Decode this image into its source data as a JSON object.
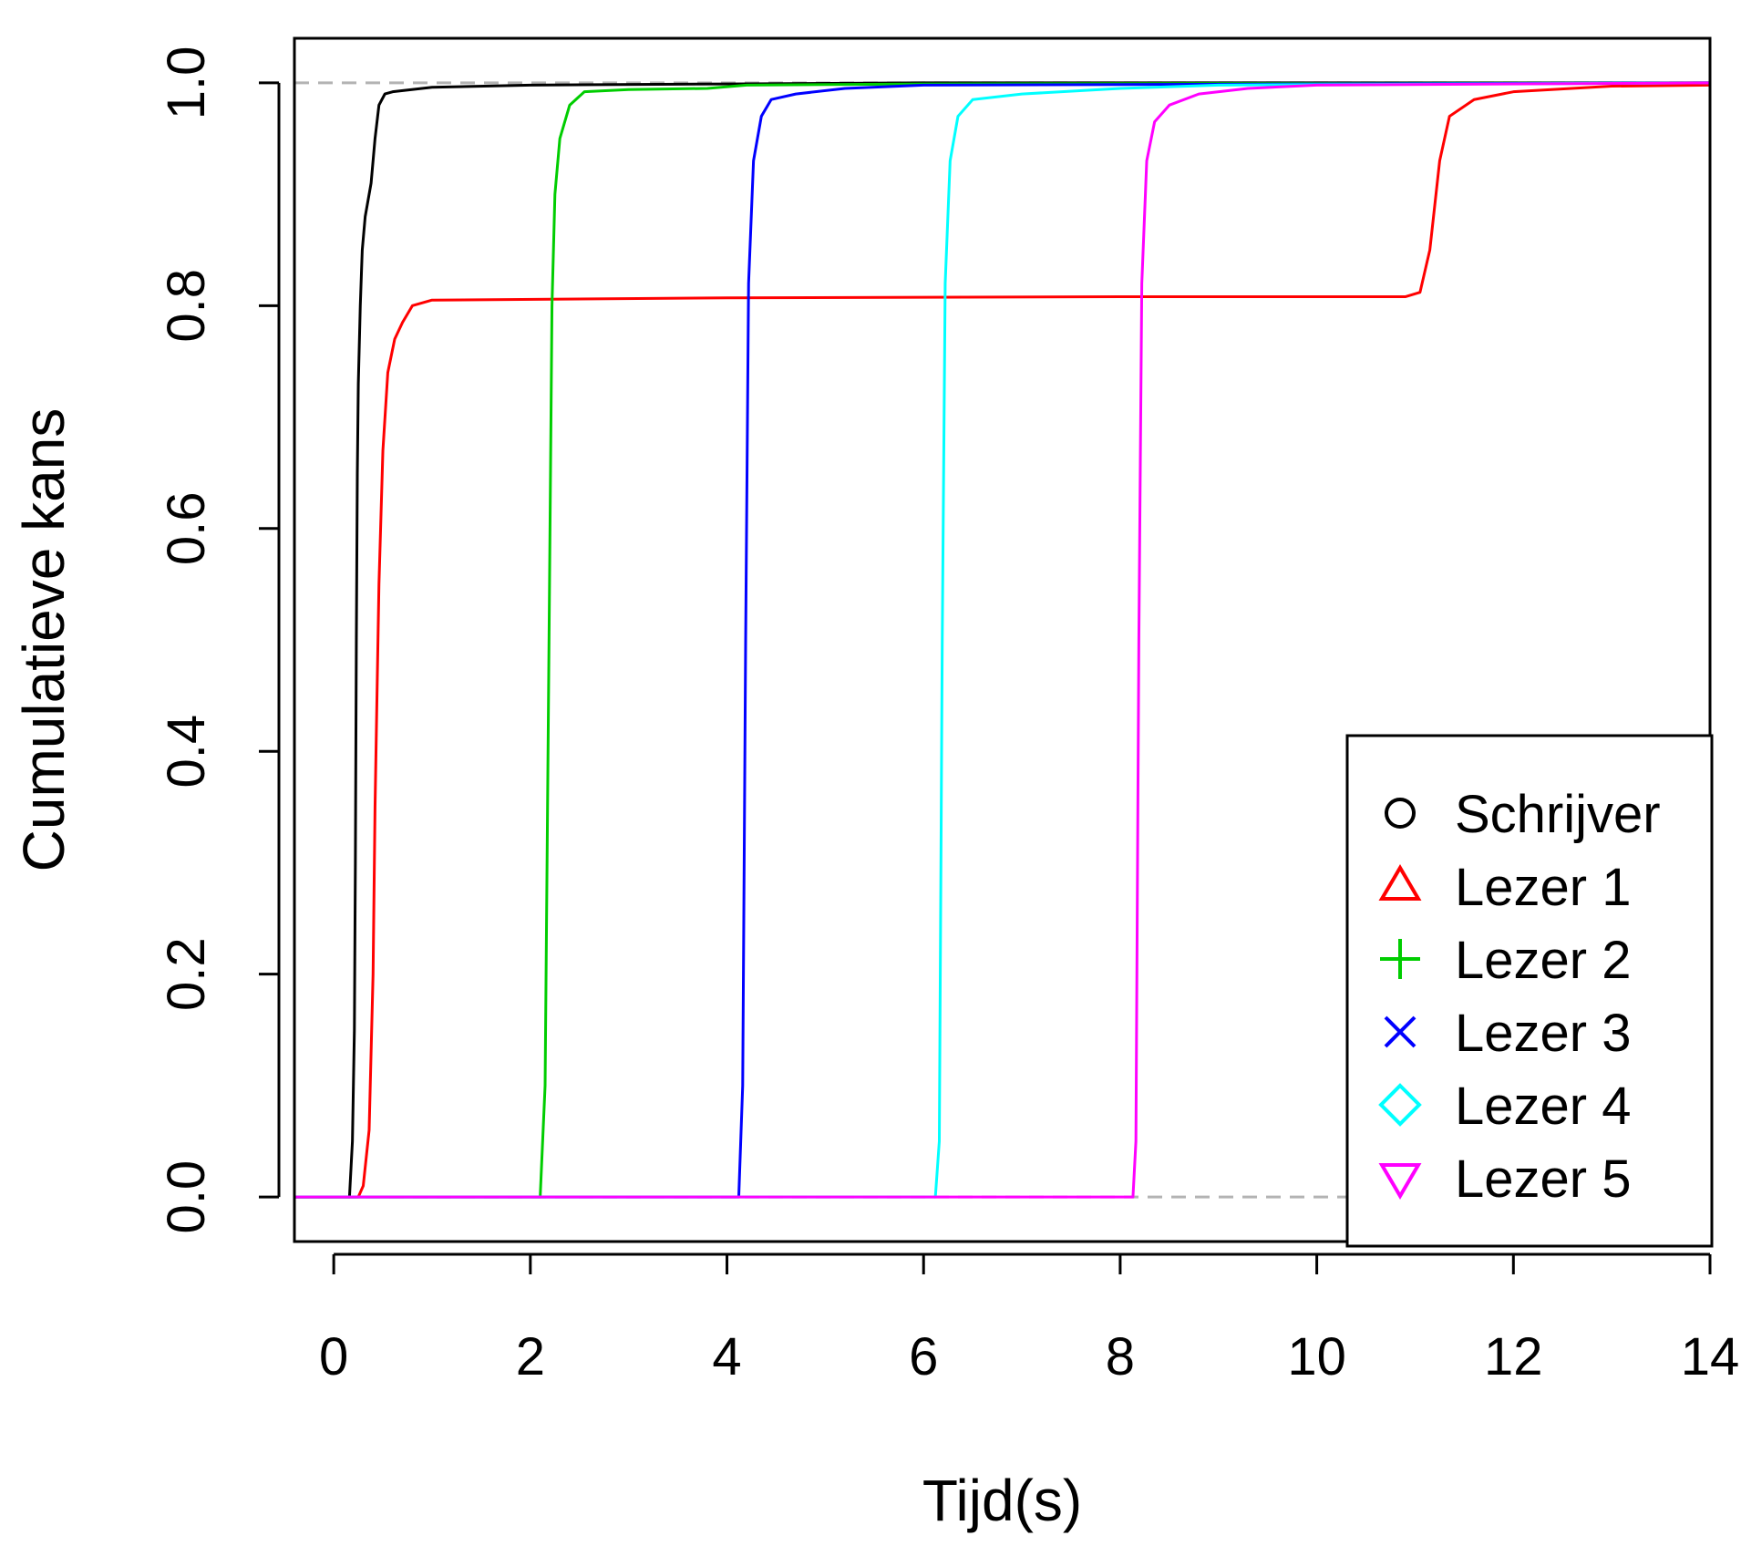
{
  "chart_data": {
    "type": "line",
    "title": "",
    "xlabel": "Tijd(s)",
    "ylabel": "Cumulatieve kans",
    "xlim": [
      -0.4,
      14.0
    ],
    "ylim": [
      -0.04,
      1.04
    ],
    "x_ticks": [
      0,
      2,
      4,
      6,
      8,
      10,
      12,
      14
    ],
    "x_tick_labels": [
      "0",
      "2",
      "4",
      "6",
      "8",
      "10",
      "12",
      "14"
    ],
    "y_ticks": [
      0.0,
      0.2,
      0.4,
      0.6,
      0.8,
      1.0
    ],
    "y_tick_labels": [
      "0.0",
      "0.2",
      "0.4",
      "0.6",
      "0.8",
      "1.0"
    ],
    "reference_lines": [
      0,
      1
    ],
    "grid": false,
    "legend_position": "bottom-right",
    "series": [
      {
        "name": "Schrijver",
        "color": "#000000",
        "marker": "circle",
        "points": [
          [
            0.16,
            0.0
          ],
          [
            0.19,
            0.05
          ],
          [
            0.21,
            0.15
          ],
          [
            0.22,
            0.3
          ],
          [
            0.23,
            0.5
          ],
          [
            0.24,
            0.65
          ],
          [
            0.25,
            0.73
          ],
          [
            0.27,
            0.8
          ],
          [
            0.29,
            0.85
          ],
          [
            0.32,
            0.88
          ],
          [
            0.38,
            0.91
          ],
          [
            0.42,
            0.95
          ],
          [
            0.46,
            0.98
          ],
          [
            0.52,
            0.99
          ],
          [
            0.6,
            0.992
          ],
          [
            1.0,
            0.996
          ],
          [
            2.0,
            0.998
          ],
          [
            4.0,
            0.999
          ],
          [
            6.0,
            1.0
          ],
          [
            14.0,
            1.0
          ]
        ]
      },
      {
        "name": "Lezer 1",
        "color": "#ff0000",
        "marker": "triangle-up",
        "points": [
          [
            0.25,
            0.0
          ],
          [
            0.3,
            0.01
          ],
          [
            0.36,
            0.06
          ],
          [
            0.4,
            0.2
          ],
          [
            0.42,
            0.35
          ],
          [
            0.46,
            0.55
          ],
          [
            0.5,
            0.67
          ],
          [
            0.55,
            0.74
          ],
          [
            0.62,
            0.77
          ],
          [
            0.7,
            0.785
          ],
          [
            0.8,
            0.8
          ],
          [
            1.0,
            0.805
          ],
          [
            4.0,
            0.807
          ],
          [
            8.0,
            0.808
          ],
          [
            10.9,
            0.808
          ],
          [
            11.05,
            0.812
          ],
          [
            11.15,
            0.85
          ],
          [
            11.25,
            0.93
          ],
          [
            11.35,
            0.97
          ],
          [
            11.6,
            0.985
          ],
          [
            12.0,
            0.992
          ],
          [
            13.0,
            0.997
          ],
          [
            14.0,
            0.998
          ]
        ]
      },
      {
        "name": "Lezer 2",
        "color": "#00cd00",
        "marker": "plus",
        "points": [
          [
            2.1,
            0.0
          ],
          [
            2.15,
            0.1
          ],
          [
            2.19,
            0.5
          ],
          [
            2.22,
            0.8
          ],
          [
            2.25,
            0.9
          ],
          [
            2.3,
            0.95
          ],
          [
            2.4,
            0.98
          ],
          [
            2.55,
            0.992
          ],
          [
            3.0,
            0.994
          ],
          [
            3.8,
            0.995
          ],
          [
            4.2,
            0.998
          ],
          [
            6.0,
            0.999
          ],
          [
            14.0,
            1.0
          ]
        ]
      },
      {
        "name": "Lezer 3",
        "color": "#0000ff",
        "marker": "cross",
        "points": [
          [
            4.12,
            0.0
          ],
          [
            4.16,
            0.1
          ],
          [
            4.19,
            0.5
          ],
          [
            4.22,
            0.82
          ],
          [
            4.27,
            0.93
          ],
          [
            4.35,
            0.97
          ],
          [
            4.45,
            0.985
          ],
          [
            4.7,
            0.99
          ],
          [
            5.2,
            0.995
          ],
          [
            6.0,
            0.998
          ],
          [
            14.0,
            1.0
          ]
        ]
      },
      {
        "name": "Lezer 4",
        "color": "#00ffff",
        "marker": "diamond",
        "points": [
          [
            6.12,
            0.0
          ],
          [
            6.16,
            0.05
          ],
          [
            6.19,
            0.5
          ],
          [
            6.22,
            0.82
          ],
          [
            6.27,
            0.93
          ],
          [
            6.35,
            0.97
          ],
          [
            6.5,
            0.985
          ],
          [
            7.0,
            0.99
          ],
          [
            8.0,
            0.995
          ],
          [
            9.0,
            0.998
          ],
          [
            14.0,
            1.0
          ]
        ]
      },
      {
        "name": "Lezer 5",
        "color": "#ff00ff",
        "marker": "triangle-down",
        "points": [
          [
            8.13,
            0.0
          ],
          [
            8.16,
            0.05
          ],
          [
            8.19,
            0.5
          ],
          [
            8.22,
            0.82
          ],
          [
            8.27,
            0.93
          ],
          [
            8.35,
            0.965
          ],
          [
            8.5,
            0.98
          ],
          [
            8.8,
            0.99
          ],
          [
            9.3,
            0.995
          ],
          [
            10.0,
            0.998
          ],
          [
            14.0,
            1.0
          ]
        ]
      }
    ]
  }
}
